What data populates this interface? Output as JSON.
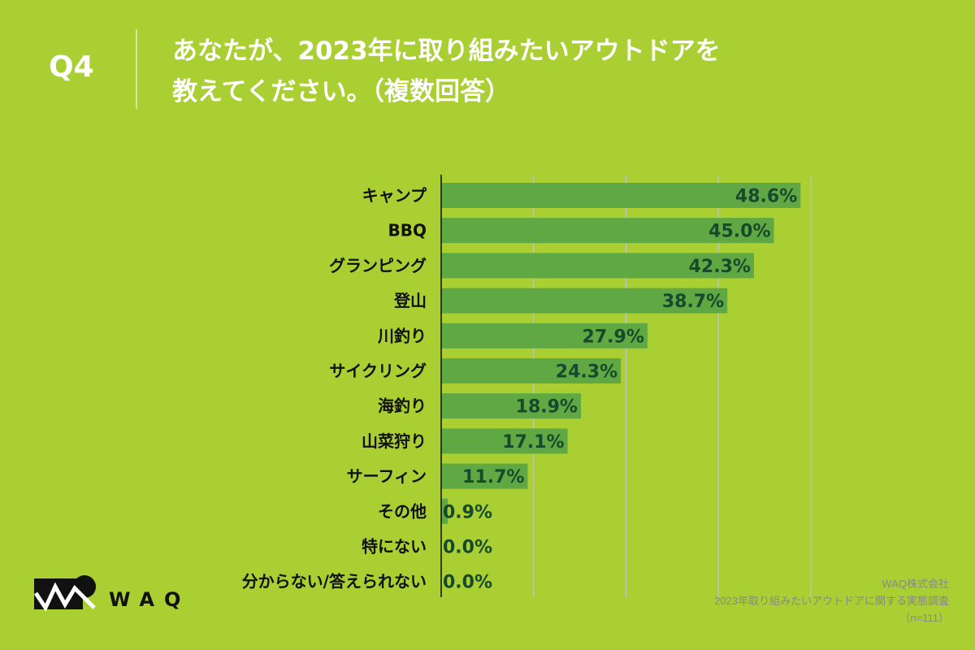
{
  "header": {
    "question_no": "Q4",
    "title_line1": "あなたが、2023年に取り組みたいアウトドアを",
    "title_line2": "教えてください。（複数回答）"
  },
  "chart_data": {
    "type": "bar",
    "orientation": "horizontal",
    "categories": [
      "キャンプ",
      "BBQ",
      "グランピング",
      "登山",
      "川釣り",
      "サイクリング",
      "海釣り",
      "山菜狩り",
      "サーフィン",
      "その他",
      "特にない",
      "分からない/答えられない"
    ],
    "values": [
      48.6,
      45.0,
      42.3,
      38.7,
      27.9,
      24.3,
      18.9,
      17.1,
      11.7,
      0.9,
      0.0,
      0.0
    ],
    "data_labels": [
      "48.6%",
      "45.0%",
      "42.3%",
      "38.7%",
      "27.9%",
      "24.3%",
      "18.9%",
      "17.1%",
      "11.7%",
      "0.9%",
      "0.0%",
      "0.0%"
    ],
    "xlim": [
      0,
      50
    ],
    "grid": true,
    "bar_color": "#5fa843",
    "label_color": "#174a2c"
  },
  "logo": {
    "text": "WAQ"
  },
  "source": {
    "company": "WAQ株式会社",
    "survey": "2023年取り組みたいアウトドアに関する実態調査",
    "sample": "（n=111）"
  },
  "colors": {
    "background": "#a9cf32",
    "panel": "#ffffff"
  }
}
